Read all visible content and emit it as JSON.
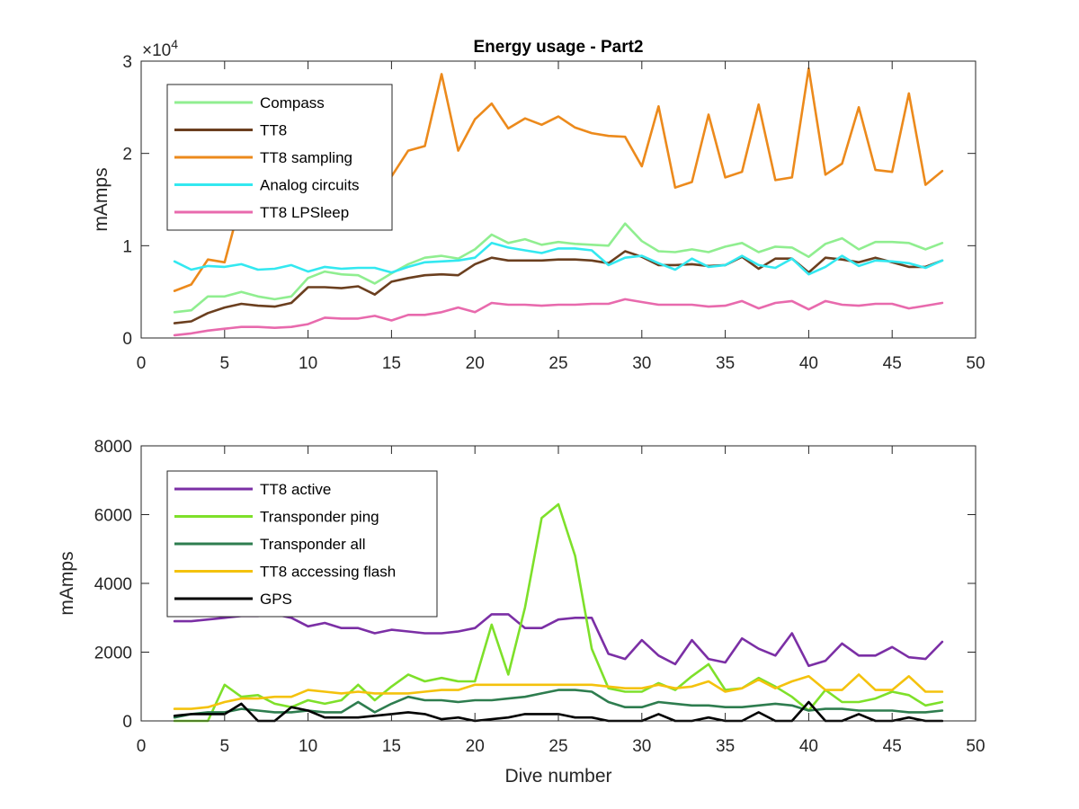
{
  "chart_data": [
    {
      "type": "line",
      "title": "Energy usage - Part2",
      "xlabel": "",
      "ylabel": "mAmps",
      "exponent_label": "×10",
      "exponent_power": "4",
      "xlim": [
        0,
        50
      ],
      "ylim": [
        0,
        30000
      ],
      "x_ticks": [
        "0",
        "5",
        "10",
        "15",
        "20",
        "25",
        "30",
        "35",
        "40",
        "45",
        "50"
      ],
      "y_ticks": [
        "0",
        "1",
        "2",
        "3"
      ],
      "legend_position": "top-left",
      "x": [
        2,
        3,
        4,
        5,
        6,
        7,
        8,
        9,
        10,
        11,
        12,
        13,
        14,
        15,
        16,
        17,
        18,
        19,
        20,
        21,
        22,
        23,
        24,
        25,
        26,
        27,
        28,
        29,
        30,
        31,
        32,
        33,
        34,
        35,
        36,
        37,
        38,
        39,
        40,
        41,
        42,
        43,
        44,
        45,
        46,
        47,
        48
      ],
      "series": [
        {
          "name": "Compass",
          "color": "#90ee90",
          "values": [
            2800,
            3000,
            4500,
            4500,
            5000,
            4500,
            4200,
            4500,
            6500,
            7200,
            6900,
            6800,
            5900,
            7000,
            8000,
            8700,
            8900,
            8600,
            9600,
            11200,
            10300,
            10700,
            10100,
            10400,
            10200,
            10100,
            10000,
            12400,
            10500,
            9400,
            9300,
            9600,
            9300,
            9900,
            10300,
            9300,
            9900,
            9800,
            8800,
            10200,
            10800,
            9600,
            10400,
            10400,
            10300,
            9600,
            10300
          ]
        },
        {
          "name": "TT8",
          "color": "#6b3f1f",
          "values": [
            1600,
            1800,
            2700,
            3300,
            3700,
            3500,
            3400,
            3800,
            5500,
            5500,
            5400,
            5600,
            4700,
            6100,
            6500,
            6800,
            6900,
            6800,
            8000,
            8700,
            8400,
            8400,
            8400,
            8500,
            8500,
            8400,
            8100,
            9400,
            8800,
            7900,
            7900,
            8000,
            7800,
            7900,
            8800,
            7500,
            8600,
            8600,
            7100,
            8700,
            8500,
            8200,
            8700,
            8200,
            7700,
            7700,
            8400
          ]
        },
        {
          "name": "TT8 sampling",
          "color": "#ec8a1c",
          "values": [
            5100,
            5800,
            8500,
            8200,
            15000,
            14500,
            14000,
            14500,
            15000,
            15500,
            15000,
            15500,
            15000,
            17500,
            20300,
            20800,
            28600,
            20300,
            23700,
            25400,
            22700,
            23800,
            23100,
            24000,
            22800,
            22200,
            21900,
            21800,
            18600,
            25100,
            16300,
            16900,
            24200,
            17400,
            18000,
            25300,
            17100,
            17400,
            29200,
            17700,
            18900,
            25000,
            18200,
            18000,
            26500,
            16600,
            18100
          ]
        },
        {
          "name": "Analog circuits",
          "color": "#33e8f0",
          "values": [
            8300,
            7400,
            7800,
            7700,
            8000,
            7400,
            7500,
            7900,
            7200,
            7700,
            7500,
            7600,
            7600,
            7100,
            7700,
            8200,
            8300,
            8400,
            8700,
            10300,
            9800,
            9500,
            9200,
            9700,
            9700,
            9500,
            7900,
            8700,
            8900,
            8100,
            7400,
            8600,
            7700,
            7900,
            8900,
            7900,
            7600,
            8600,
            6900,
            7700,
            8900,
            7800,
            8400,
            8300,
            8100,
            7600,
            8400
          ]
        },
        {
          "name": "TT8 LPSleep",
          "color": "#e86aad",
          "values": [
            300,
            500,
            800,
            1000,
            1200,
            1200,
            1100,
            1200,
            1500,
            2200,
            2100,
            2100,
            2400,
            1900,
            2500,
            2500,
            2800,
            3300,
            2800,
            3800,
            3600,
            3600,
            3500,
            3600,
            3600,
            3700,
            3700,
            4200,
            3900,
            3600,
            3600,
            3600,
            3400,
            3500,
            4000,
            3200,
            3800,
            4000,
            3100,
            4000,
            3600,
            3500,
            3700,
            3700,
            3200,
            3500,
            3800
          ]
        }
      ]
    },
    {
      "type": "line",
      "title": "",
      "xlabel": "Dive number",
      "ylabel": "mAmps",
      "xlim": [
        0,
        50
      ],
      "ylim": [
        0,
        8000
      ],
      "x_ticks": [
        "0",
        "5",
        "10",
        "15",
        "20",
        "25",
        "30",
        "35",
        "40",
        "45",
        "50"
      ],
      "y_ticks": [
        "0",
        "2000",
        "4000",
        "6000",
        "8000"
      ],
      "legend_position": "top-left",
      "x": [
        2,
        3,
        4,
        5,
        6,
        7,
        8,
        9,
        10,
        11,
        12,
        13,
        14,
        15,
        16,
        17,
        18,
        19,
        20,
        21,
        22,
        23,
        24,
        25,
        26,
        27,
        28,
        29,
        30,
        31,
        32,
        33,
        34,
        35,
        36,
        37,
        38,
        39,
        40,
        41,
        42,
        43,
        44,
        45,
        46,
        47,
        48
      ],
      "series": [
        {
          "name": "TT8 active",
          "color": "#7b2fa5",
          "values": [
            2900,
            2900,
            2950,
            3000,
            3050,
            3050,
            3100,
            3000,
            2750,
            2850,
            2700,
            2700,
            2550,
            2650,
            2600,
            2550,
            2550,
            2600,
            2700,
            3100,
            3100,
            2700,
            2700,
            2950,
            3000,
            3000,
            1950,
            1800,
            2350,
            1900,
            1650,
            2350,
            1800,
            1700,
            2400,
            2100,
            1900,
            2550,
            1600,
            1750,
            2250,
            1900,
            1900,
            2150,
            1850,
            1800,
            2300
          ]
        },
        {
          "name": "Transponder ping",
          "color": "#7ee02a",
          "values": [
            0,
            0,
            0,
            1050,
            700,
            750,
            500,
            400,
            600,
            500,
            600,
            1050,
            600,
            1000,
            1350,
            1150,
            1250,
            1150,
            1150,
            2800,
            1350,
            3300,
            5900,
            6300,
            4800,
            2100,
            950,
            850,
            850,
            1100,
            900,
            1300,
            1650,
            900,
            950,
            1250,
            1000,
            700,
            300,
            900,
            550,
            550,
            650,
            850,
            750,
            450,
            550
          ]
        },
        {
          "name": "Transponder all",
          "color": "#2e7d4f",
          "values": [
            100,
            200,
            250,
            250,
            350,
            300,
            250,
            250,
            300,
            250,
            250,
            550,
            250,
            500,
            700,
            600,
            600,
            550,
            600,
            600,
            650,
            700,
            800,
            900,
            900,
            850,
            550,
            400,
            400,
            550,
            500,
            450,
            450,
            400,
            400,
            450,
            500,
            450,
            300,
            350,
            350,
            300,
            300,
            300,
            250,
            250,
            300
          ]
        },
        {
          "name": "TT8 accessing flash",
          "color": "#f4c20d",
          "values": [
            350,
            350,
            400,
            550,
            650,
            650,
            700,
            700,
            900,
            850,
            800,
            850,
            800,
            800,
            800,
            850,
            900,
            900,
            1050,
            1050,
            1050,
            1050,
            1050,
            1050,
            1050,
            1050,
            1000,
            950,
            950,
            1050,
            950,
            1000,
            1150,
            850,
            950,
            1200,
            950,
            1150,
            1300,
            900,
            900,
            1350,
            900,
            900,
            1300,
            850,
            850
          ]
        },
        {
          "name": "GPS",
          "color": "#000000",
          "values": [
            150,
            200,
            200,
            200,
            500,
            0,
            0,
            400,
            300,
            100,
            100,
            100,
            150,
            200,
            250,
            200,
            50,
            100,
            0,
            50,
            100,
            200,
            200,
            200,
            100,
            100,
            0,
            0,
            0,
            200,
            0,
            0,
            100,
            0,
            0,
            250,
            0,
            0,
            550,
            0,
            0,
            200,
            0,
            0,
            100,
            0,
            0
          ]
        }
      ]
    }
  ]
}
